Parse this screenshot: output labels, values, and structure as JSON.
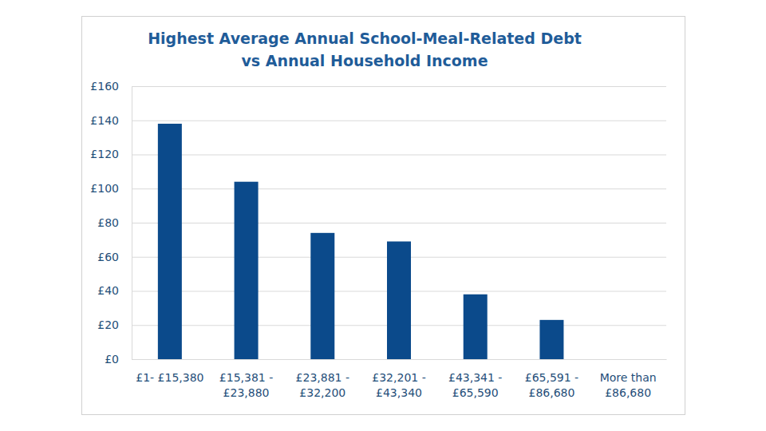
{
  "chart_data": {
    "type": "bar",
    "title": "Highest Average Annual School-Meal-Related Debt\nvs Annual Household Income",
    "categories": [
      "£1- £15,380",
      "£15,381 -\n£23,880",
      "£23,881 -\n£32,200",
      "£32,201 -\n£43,340",
      "£43,341 -\n£65,590",
      "£65,591 -\n£86,680",
      "More than\n£86,680"
    ],
    "values": [
      138,
      104,
      74,
      69,
      38,
      23,
      0
    ],
    "color": "#0b4a8b",
    "ylim": [
      0,
      160
    ],
    "yticks": [
      {
        "value": 0,
        "label": "£0"
      },
      {
        "value": 20,
        "label": "£20"
      },
      {
        "value": 40,
        "label": "£40"
      },
      {
        "value": 60,
        "label": "£60"
      },
      {
        "value": 80,
        "label": "£80"
      },
      {
        "value": 100,
        "label": "£100"
      },
      {
        "value": 120,
        "label": "£120"
      },
      {
        "value": 140,
        "label": "£140"
      },
      {
        "value": 160,
        "label": "£160"
      }
    ],
    "grid": true
  }
}
